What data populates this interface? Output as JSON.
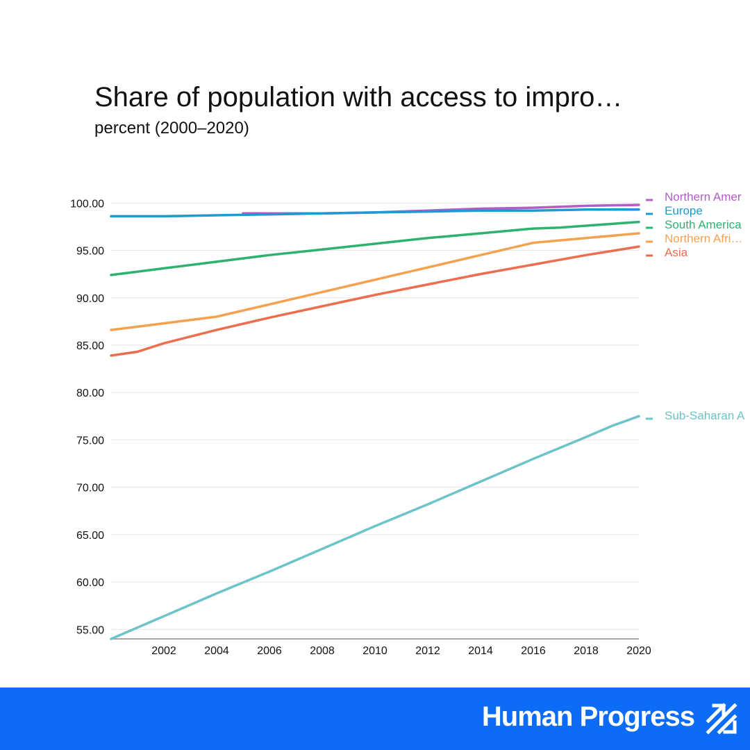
{
  "chart_data": {
    "type": "line",
    "title": "Share of population with access to impro…",
    "subtitle": "percent (2000–2020)",
    "xlabel": "",
    "ylabel": "",
    "xlim": [
      2000,
      2020
    ],
    "ylim": [
      54,
      102
    ],
    "x_ticks": [
      "2002",
      "2004",
      "2006",
      "2008",
      "2010",
      "2012",
      "2014",
      "2016",
      "2018",
      "2020"
    ],
    "y_ticks": [
      "55.00",
      "60.00",
      "65.00",
      "70.00",
      "75.00",
      "80.00",
      "85.00",
      "90.00",
      "95.00",
      "100.00"
    ],
    "grid": true,
    "series": [
      {
        "name": "Northern Amer…",
        "label": "Northern Amer",
        "color": "#b45cc8",
        "x": [
          2005,
          2008,
          2010,
          2012,
          2014,
          2016,
          2018,
          2020
        ],
        "values": [
          98.9,
          98.9,
          99.0,
          99.2,
          99.4,
          99.5,
          99.7,
          99.8
        ]
      },
      {
        "name": "Europe",
        "label": "Europe",
        "color": "#1f99d2",
        "x": [
          2000,
          2002,
          2004,
          2006,
          2008,
          2010,
          2012,
          2014,
          2016,
          2018,
          2020
        ],
        "values": [
          98.6,
          98.6,
          98.7,
          98.8,
          98.9,
          99.0,
          99.1,
          99.2,
          99.2,
          99.3,
          99.3
        ]
      },
      {
        "name": "South America",
        "label": "South America",
        "color": "#2fb170",
        "x": [
          2000,
          2002,
          2004,
          2006,
          2008,
          2010,
          2012,
          2014,
          2016,
          2017,
          2018,
          2020
        ],
        "values": [
          92.4,
          93.1,
          93.8,
          94.5,
          95.1,
          95.7,
          96.3,
          96.8,
          97.3,
          97.4,
          97.6,
          98.0
        ]
      },
      {
        "name": "Northern Africa",
        "label": "Northern Afri…",
        "color": "#f4a24f",
        "x": [
          2000,
          2002,
          2004,
          2006,
          2008,
          2010,
          2012,
          2014,
          2016,
          2018,
          2020
        ],
        "values": [
          86.6,
          87.3,
          88.0,
          89.3,
          90.6,
          91.9,
          93.2,
          94.5,
          95.8,
          96.3,
          96.8
        ]
      },
      {
        "name": "Asia",
        "label": "Asia",
        "color": "#ec6e4e",
        "x": [
          2000,
          2001,
          2002,
          2004,
          2006,
          2008,
          2010,
          2012,
          2014,
          2016,
          2018,
          2020
        ],
        "values": [
          83.9,
          84.3,
          85.2,
          86.6,
          87.9,
          89.1,
          90.3,
          91.4,
          92.5,
          93.5,
          94.5,
          95.4
        ]
      },
      {
        "name": "Sub-Saharan Africa",
        "label": "Sub-Saharan A",
        "color": "#6cc4c8",
        "x": [
          2000,
          2002,
          2004,
          2006,
          2008,
          2010,
          2012,
          2014,
          2016,
          2018,
          2019,
          2020
        ],
        "values": [
          54.0,
          56.4,
          58.8,
          61.1,
          63.5,
          65.9,
          68.2,
          70.6,
          73.0,
          75.3,
          76.5,
          77.5
        ]
      }
    ]
  },
  "footer": {
    "brand": "Human Progress",
    "brand_icon": "human-progress-arrows-icon",
    "background": "#0c6cf5"
  }
}
